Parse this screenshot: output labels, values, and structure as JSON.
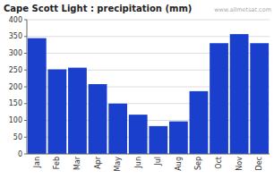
{
  "chart_data": {
    "type": "bar",
    "title": "Cape Scott Light : precipitation (mm)",
    "categories": [
      "Jan",
      "Feb",
      "Mar",
      "Apr",
      "May",
      "Jun",
      "Jul",
      "Aug",
      "Sep",
      "Oct",
      "Nov",
      "Dec"
    ],
    "values": [
      345,
      252,
      257,
      208,
      150,
      117,
      83,
      97,
      187,
      330,
      357,
      330
    ],
    "color": "#1a3fcc",
    "ylim": [
      0,
      400
    ],
    "yticks": [
      0,
      50,
      100,
      150,
      200,
      250,
      300,
      350,
      400
    ],
    "grid": true,
    "annotations": [
      "www.allmetsat.com"
    ]
  }
}
